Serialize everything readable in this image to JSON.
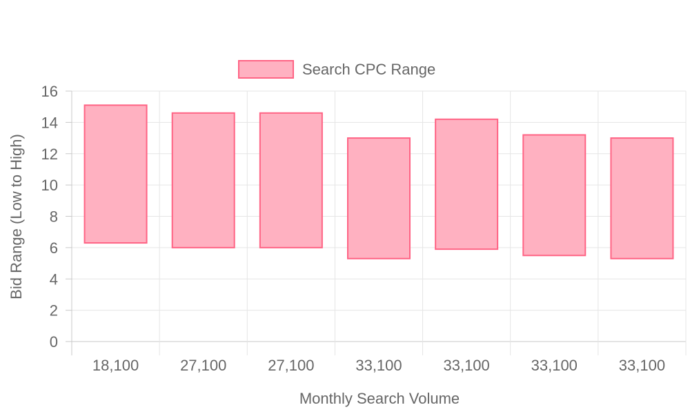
{
  "chart_data": {
    "type": "bar",
    "subtype": "floating-range",
    "categories": [
      "18,100",
      "27,100",
      "27,100",
      "33,100",
      "33,100",
      "33,100",
      "33,100"
    ],
    "series": [
      {
        "name": "Search CPC Range",
        "low": [
          6.3,
          6.0,
          6.0,
          5.3,
          5.9,
          5.5,
          5.3
        ],
        "high": [
          15.1,
          14.6,
          14.6,
          13.0,
          14.2,
          13.2,
          13.0
        ],
        "fill_color": "#ffb1c1",
        "border_color": "#ff6384"
      }
    ],
    "xlabel": "Monthly Search Volume",
    "ylabel": "Bid Range (Low to High)",
    "ylim": [
      0,
      16
    ],
    "y_ticks": [
      "0",
      "2",
      "4",
      "6",
      "8",
      "10",
      "12",
      "14",
      "16"
    ],
    "grid": true,
    "legend_position": "top"
  },
  "colors": {
    "grid": "#e5e5e5",
    "axis": "#c8c8c8",
    "text": "#666666"
  }
}
